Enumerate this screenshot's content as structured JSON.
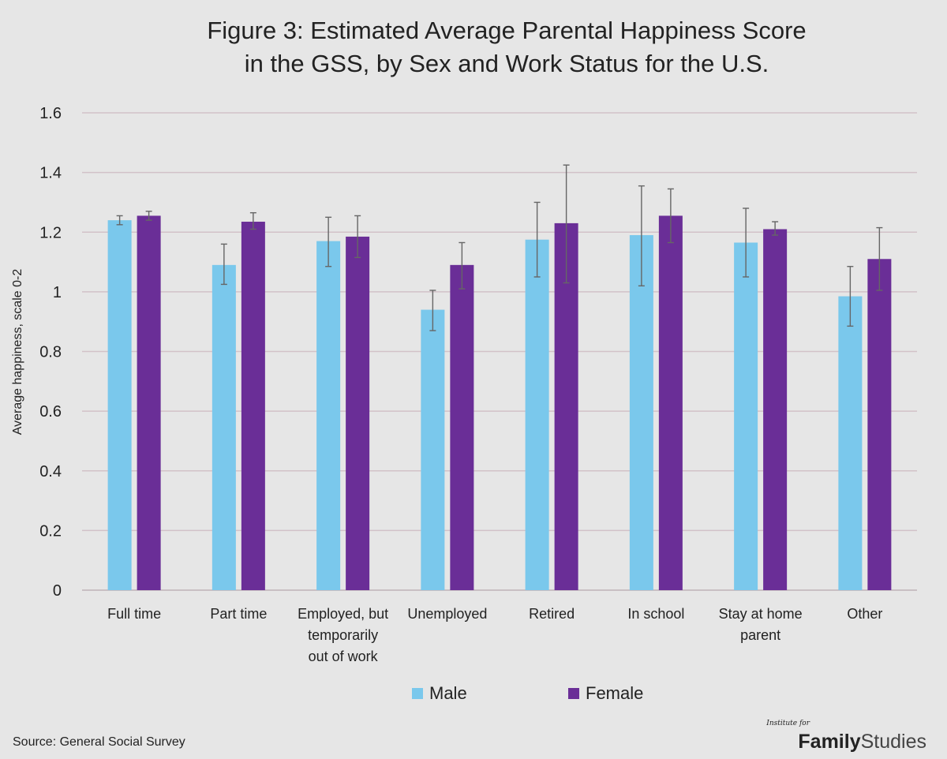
{
  "title_lines": [
    "Figure 3: Estimated Average Parental Happiness Score",
    "in the GSS, by Sex and Work Status for the U.S."
  ],
  "source": "Source: General Social Survey",
  "logo": {
    "small": "Institute for",
    "bold": "Family",
    "light": "Studies"
  },
  "colors": {
    "male": "#7ac8ec",
    "female": "#6a2e97",
    "grid": "#d2c2c8",
    "error": "#666666"
  },
  "chart_data": {
    "type": "bar",
    "title": "Figure 3: Estimated Average Parental Happiness Score in the GSS, by Sex and Work Status for the U.S.",
    "xlabel": "",
    "ylabel": "Average happiness, scale 0-2",
    "ylim": [
      0,
      1.6
    ],
    "yticks": [
      "0",
      "0.2",
      "0.4",
      "0.6",
      "0.8",
      "1",
      "1.2",
      "1.4",
      "1.6"
    ],
    "ytick_values": [
      0,
      0.2,
      0.4,
      0.6,
      0.8,
      1.0,
      1.2,
      1.4,
      1.6
    ],
    "grid": true,
    "legend_position": "bottom",
    "categories": [
      [
        "Full time"
      ],
      [
        "Part time"
      ],
      [
        "Employed, but",
        "temporarily",
        "out of work"
      ],
      [
        "Unemployed"
      ],
      [
        "Retired"
      ],
      [
        "In school"
      ],
      [
        "Stay at home",
        "parent"
      ],
      [
        "Other"
      ]
    ],
    "series": [
      {
        "name": "Male",
        "values": [
          1.24,
          1.09,
          1.17,
          0.94,
          1.175,
          1.19,
          1.165,
          0.985
        ],
        "error_low": [
          1.225,
          1.025,
          1.085,
          0.87,
          1.05,
          1.02,
          1.05,
          0.885
        ],
        "error_high": [
          1.255,
          1.16,
          1.25,
          1.005,
          1.3,
          1.355,
          1.28,
          1.085
        ]
      },
      {
        "name": "Female",
        "values": [
          1.255,
          1.235,
          1.185,
          1.09,
          1.23,
          1.255,
          1.21,
          1.11
        ],
        "error_low": [
          1.24,
          1.21,
          1.115,
          1.01,
          1.03,
          1.165,
          1.19,
          1.005
        ],
        "error_high": [
          1.27,
          1.265,
          1.255,
          1.165,
          1.425,
          1.345,
          1.235,
          1.215
        ]
      }
    ]
  }
}
